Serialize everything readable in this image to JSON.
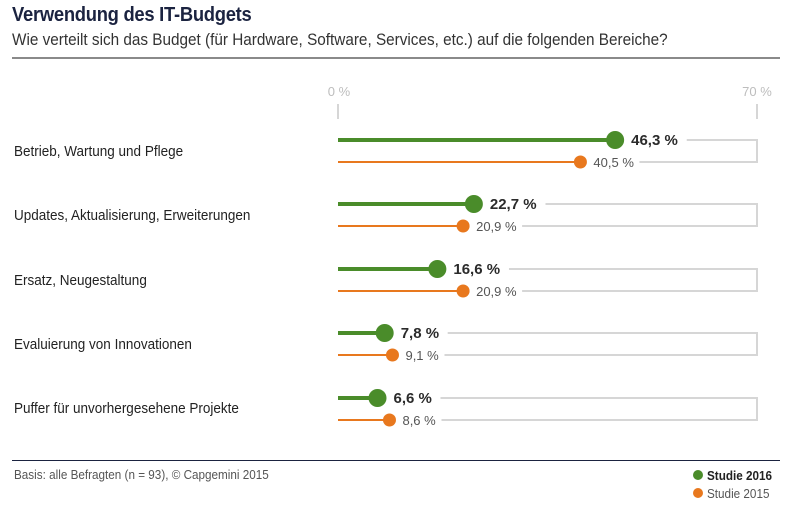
{
  "header": {
    "title": "Verwendung des IT-Budgets",
    "subtitle": "Wie verteilt sich das Budget (für Hardware, Software, Services, etc.) auf die folgenden Bereiche?"
  },
  "footer": {
    "note": "Basis: alle Befragten (n = 93), © Capgemini 2015"
  },
  "colors": {
    "studie_2016": "#4a8c2a",
    "studie_2015": "#e8781e",
    "guide": "#d6d6d6",
    "title": "#1b2340"
  },
  "chart_data": {
    "type": "dot-bar",
    "title": "Verwendung des IT-Budgets",
    "subtitle": "Wie verteilt sich das Budget (für Hardware, Software, Services, etc.) auf die folgenden Bereiche?",
    "xlim": [
      0,
      70
    ],
    "x_ticks": [
      "0 %",
      "70 %"
    ],
    "categories": [
      "Betrieb, Wartung und Pflege",
      "Updates, Aktualisierung, Erweiterungen",
      "Ersatz, Neugestaltung",
      "Evaluierung von Innovationen",
      "Puffer für unvorhergesehene Projekte"
    ],
    "series": [
      {
        "name": "Studie 2016",
        "values": [
          46.3,
          22.7,
          16.6,
          7.8,
          6.6
        ],
        "labels": [
          "46,3 %",
          "22,7 %",
          "16,6 %",
          "7,8 %",
          "6,6 %"
        ]
      },
      {
        "name": "Studie 2015",
        "values": [
          40.5,
          20.9,
          20.9,
          9.1,
          8.6
        ],
        "labels": [
          "40,5 %",
          "20,9 %",
          "20,9 %",
          "9,1 %",
          "8,6 %"
        ]
      }
    ],
    "legend": "bottom-right",
    "grid": false
  }
}
